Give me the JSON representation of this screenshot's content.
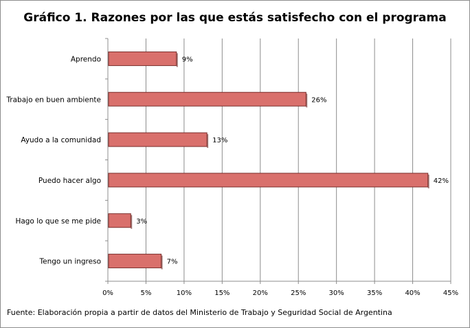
{
  "chart_data": {
    "type": "bar",
    "orientation": "horizontal",
    "title": "Gráfico 1. Razones por las que estás satisfecho con el programa",
    "categories": [
      "Aprendo",
      "Trabajo en buen ambiente",
      "Ayudo a la comunidad",
      "Puedo hacer algo",
      "Hago lo que se me pide",
      "Tengo un ingreso"
    ],
    "values": [
      9,
      26,
      13,
      42,
      3,
      7
    ],
    "data_labels": [
      "9%",
      "26%",
      "13%",
      "42%",
      "3%",
      "7%"
    ],
    "xlim": [
      0,
      45
    ],
    "xticks": [
      0,
      5,
      10,
      15,
      20,
      25,
      30,
      35,
      40,
      45
    ],
    "xtick_labels": [
      "0%",
      "5%",
      "10%",
      "15%",
      "20%",
      "25%",
      "30%",
      "35%",
      "40%",
      "45%"
    ],
    "grid": "vertical",
    "legend": "none",
    "bar_color": "#d9706c",
    "bar_edge_color": "#7a2e2b",
    "grid_color": "#8c8c8c"
  },
  "source": "Fuente: Elaboración propia a partir de datos del Ministerio de Trabajo y Seguridad Social de Argentina"
}
